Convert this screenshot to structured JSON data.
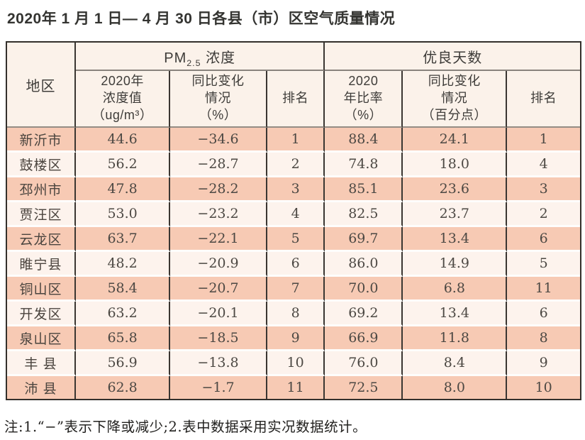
{
  "title": "2020年 1 月 1 日— 4 月 30 日各县（市）区空气质量情况",
  "note": "注:1.“−”表示下降或减少;2.表中数据采用实况数据统计。",
  "colors": {
    "row_salmon": "#f7cab4",
    "row_cream": "#fdf3ed",
    "header_bg": "#fbf2ea",
    "grid_dark": "#3a3632",
    "grid_gray": "#948d85",
    "text": "#4c4843"
  },
  "table": {
    "region_header": "地区",
    "pm_group": {
      "prefix": "PM",
      "sub": "2.5",
      "suffix": " 浓度"
    },
    "good_group_label": "优良天数",
    "columns": {
      "pm_value": "2020年\n浓度值\n（ug/m³）",
      "pm_change": "同比变化\n情况\n（%）",
      "pm_rank": "排名",
      "good_ratio": "2020\n年比率\n（%）",
      "good_change": "同比变化\n情况\n（百分点）",
      "good_rank": "排名"
    },
    "rows": [
      {
        "region": "新沂市",
        "values": [
          "44.6",
          "−34.6",
          "1",
          "88.4",
          "24.1",
          "1"
        ]
      },
      {
        "region": "鼓楼区",
        "values": [
          "56.2",
          "−28.7",
          "2",
          "74.8",
          "18.0",
          "4"
        ]
      },
      {
        "region": "邳州市",
        "values": [
          "47.8",
          "−28.2",
          "3",
          "85.1",
          "23.6",
          "3"
        ]
      },
      {
        "region": "贾汪区",
        "values": [
          "53.0",
          "−23.2",
          "4",
          "82.5",
          "23.7",
          "2"
        ]
      },
      {
        "region": "云龙区",
        "values": [
          "63.7",
          "−22.1",
          "5",
          "69.7",
          "13.4",
          "6"
        ]
      },
      {
        "region": "睢宁县",
        "values": [
          "48.2",
          "−20.9",
          "6",
          "86.0",
          "14.9",
          "5"
        ]
      },
      {
        "region": "铜山区",
        "values": [
          "58.4",
          "−20.7",
          "7",
          "70.0",
          "6.8",
          "11"
        ]
      },
      {
        "region": "开发区",
        "values": [
          "63.2",
          "−20.1",
          "8",
          "69.2",
          "13.4",
          "6"
        ]
      },
      {
        "region": "泉山区",
        "values": [
          "65.8",
          "−18.5",
          "9",
          "66.9",
          "11.8",
          "8"
        ]
      },
      {
        "region": "丰 县",
        "values": [
          "56.9",
          "−13.8",
          "10",
          "76.0",
          "8.4",
          "9"
        ]
      },
      {
        "region": "沛 县",
        "values": [
          "62.8",
          "−1.7",
          "11",
          "72.5",
          "8.0",
          "10"
        ]
      }
    ]
  }
}
